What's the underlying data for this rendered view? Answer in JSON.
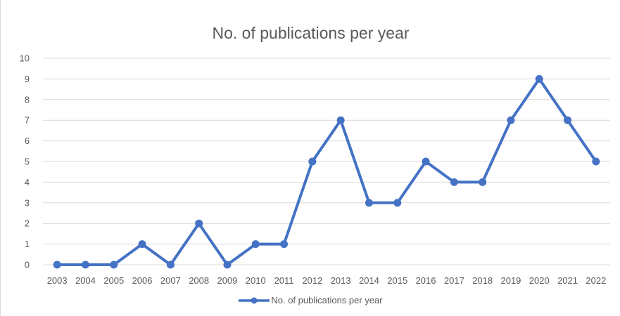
{
  "chart_data": {
    "type": "line",
    "title": "No. of publications per year",
    "xlabel": "",
    "ylabel": "",
    "categories": [
      "2003",
      "2004",
      "2005",
      "2006",
      "2007",
      "2008",
      "2009",
      "2010",
      "2011",
      "2012",
      "2013",
      "2014",
      "2015",
      "2016",
      "2017",
      "2018",
      "2019",
      "2020",
      "2021",
      "2022"
    ],
    "series": [
      {
        "name": "No. of publications per year",
        "values": [
          0,
          0,
          0,
          1,
          0,
          2,
          0,
          1,
          1,
          5,
          7,
          3,
          3,
          5,
          4,
          4,
          7,
          9,
          7,
          5
        ],
        "color": "#4472c4"
      }
    ],
    "ylim": [
      0,
      10
    ],
    "yticks": [
      0,
      1,
      2,
      3,
      4,
      5,
      6,
      7,
      8,
      9,
      10
    ],
    "grid": true,
    "legend": "bottom"
  }
}
